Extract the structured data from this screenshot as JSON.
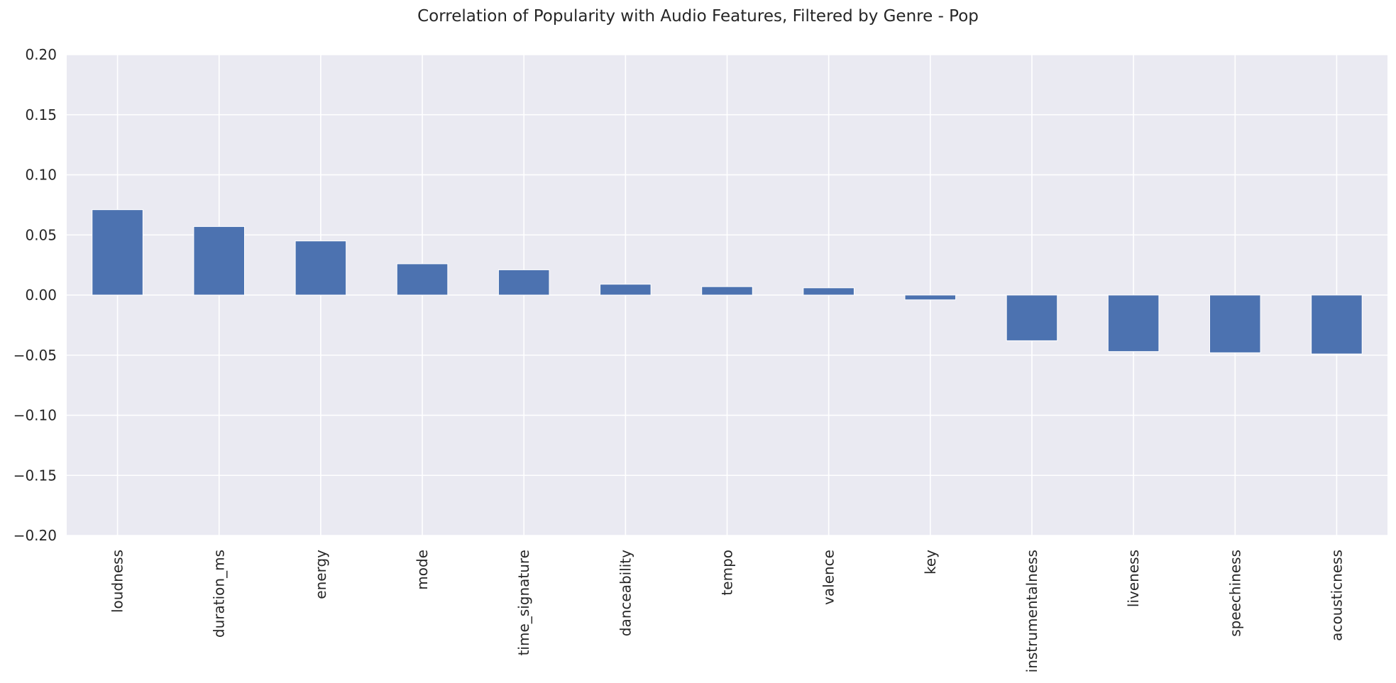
{
  "chart_data": {
    "type": "bar",
    "title": "Correlation of Popularity with Audio Features, Filtered by Genre - Pop",
    "xlabel": "",
    "ylabel": "",
    "categories": [
      "loudness",
      "duration_ms",
      "energy",
      "mode",
      "time_signature",
      "danceability",
      "tempo",
      "valence",
      "key",
      "instrumentalness",
      "liveness",
      "speechiness",
      "acousticness"
    ],
    "values": [
      0.071,
      0.057,
      0.045,
      0.026,
      0.021,
      0.009,
      0.007,
      0.006,
      -0.004,
      -0.038,
      -0.047,
      -0.048,
      -0.049
    ],
    "ylim": [
      -0.2,
      0.2
    ],
    "yticks": [
      "0.20",
      "0.15",
      "0.10",
      "0.05",
      "0.00",
      "−0.05",
      "−0.10",
      "−0.15",
      "−0.20"
    ],
    "ytick_values": [
      0.2,
      0.15,
      0.1,
      0.05,
      0.0,
      -0.05,
      -0.1,
      -0.15,
      -0.2
    ],
    "grid": true,
    "legend": "none",
    "colors": {
      "bar": "#4c72b0",
      "plot_background": "#eaeaf2",
      "grid": "#ffffff",
      "text": "#262626"
    }
  }
}
